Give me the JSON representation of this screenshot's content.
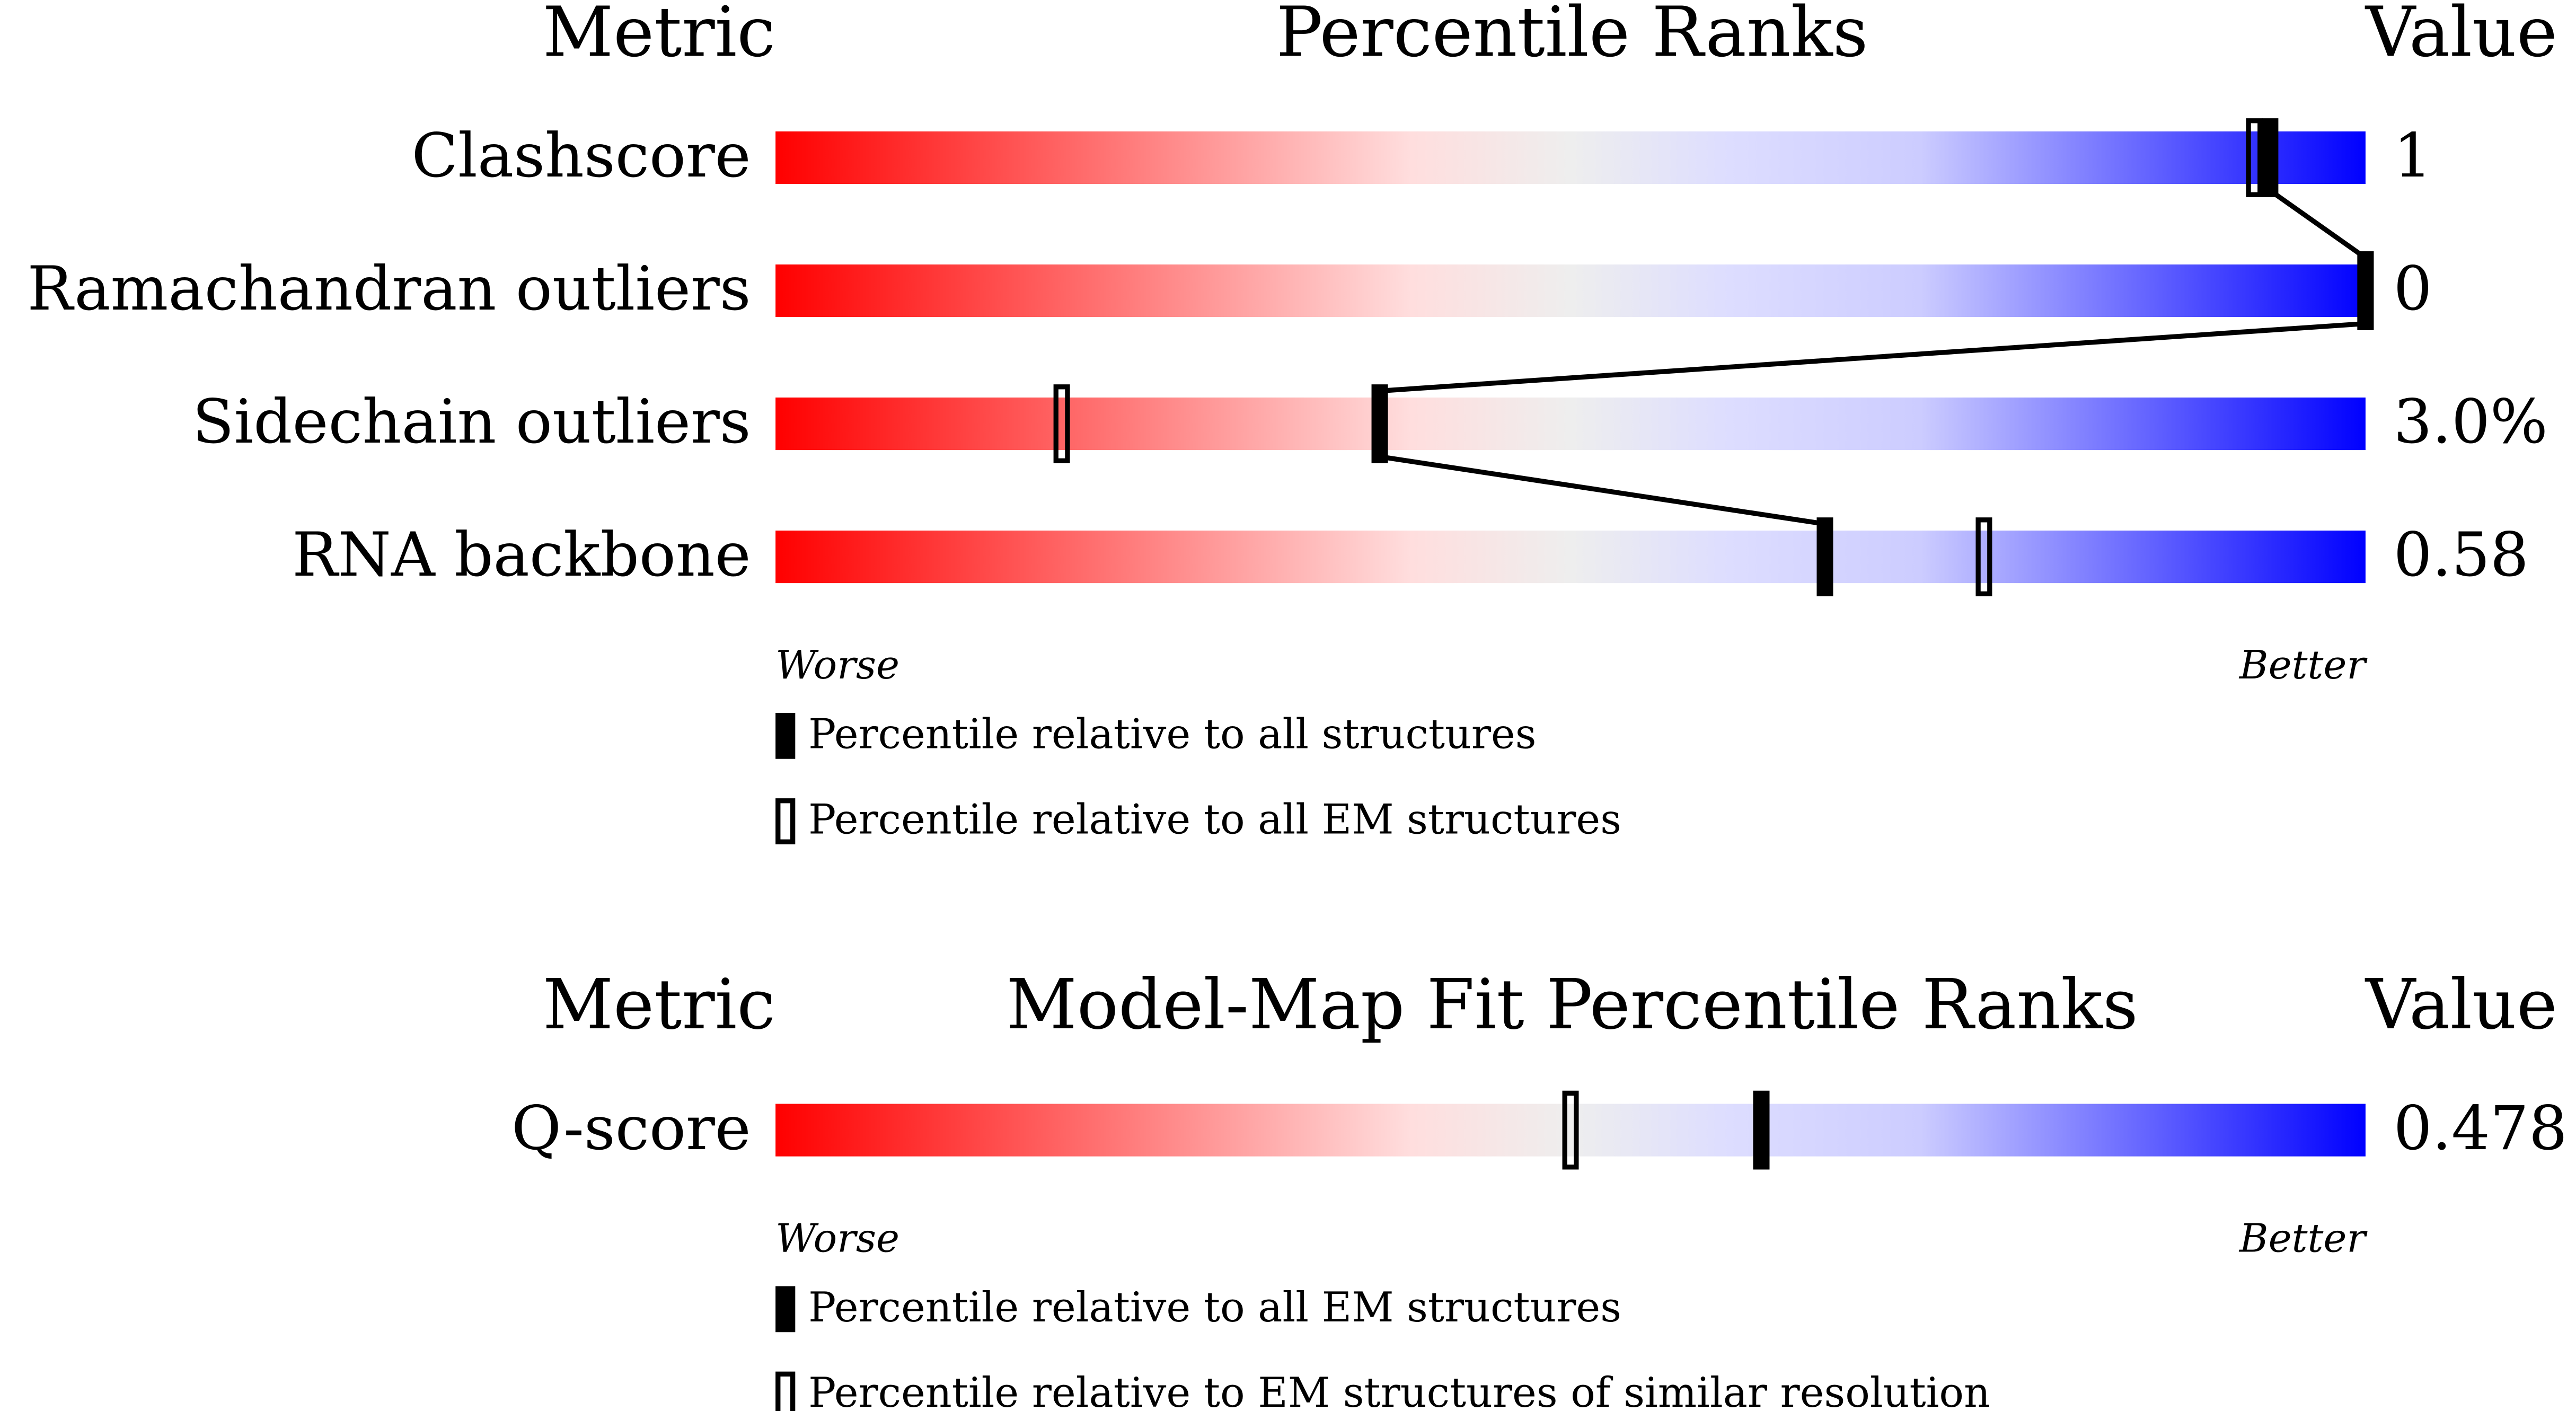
{
  "panels": [
    {
      "headers": {
        "metric": "Metric",
        "title": "Percentile Ranks",
        "value": "Value"
      },
      "rows": [
        {
          "metric": "Clashscore",
          "value": "1",
          "percentiles": [
            94,
            93
          ]
        },
        {
          "metric": "Ramachandran outliers",
          "value": "0",
          "percentiles": [
            100,
            100
          ]
        },
        {
          "metric": "Sidechain outliers",
          "value": "3.0%",
          "percentiles": [
            38,
            18
          ]
        },
        {
          "metric": "RNA backbone",
          "value": "0.58",
          "percentiles": [
            66,
            76
          ]
        }
      ],
      "scale": {
        "worse": "Worse",
        "better": "Better"
      },
      "legend": [
        "Percentile relative to all structures",
        "Percentile relative to all EM structures"
      ]
    },
    {
      "headers": {
        "metric": "Metric",
        "title": "Model-Map Fit Percentile Ranks",
        "value": "Value"
      },
      "rows": [
        {
          "metric": "Q-score",
          "value": "0.478",
          "percentiles": [
            62,
            50
          ]
        }
      ],
      "scale": {
        "worse": "Worse",
        "better": "Better"
      },
      "legend": [
        "Percentile relative to all EM structures",
        "Percentile relative to EM structures of similar resolution"
      ]
    }
  ]
}
